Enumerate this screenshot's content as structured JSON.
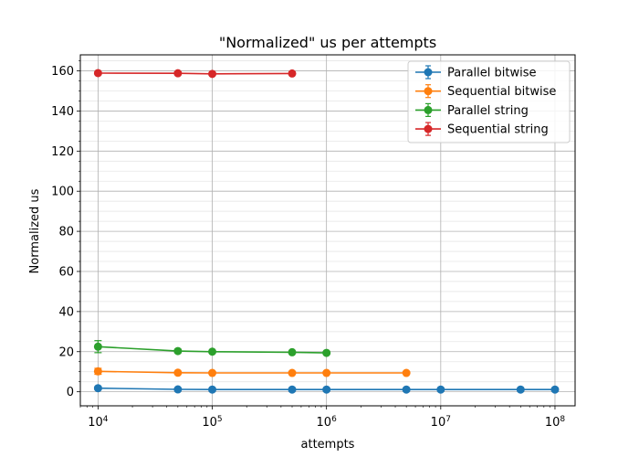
{
  "chart_data": {
    "type": "line",
    "title": "\"Normalized\" us per attempts",
    "xlabel": "attempts",
    "ylabel": "Normalized us",
    "xscale": "log",
    "xlim": [
      7000,
      150000000
    ],
    "ylim": [
      -7,
      168
    ],
    "yticks": [
      0,
      20,
      40,
      60,
      80,
      100,
      120,
      140,
      160
    ],
    "ytick_labels": [
      "0",
      "20",
      "40",
      "60",
      "80",
      "100",
      "120",
      "140",
      "160"
    ],
    "xticks": [
      10000,
      100000,
      1000000,
      10000000,
      100000000
    ],
    "xtick_labels": [
      {
        "base": "10",
        "exp": "4"
      },
      {
        "base": "10",
        "exp": "5"
      },
      {
        "base": "10",
        "exp": "6"
      },
      {
        "base": "10",
        "exp": "7"
      },
      {
        "base": "10",
        "exp": "8"
      }
    ],
    "grid": true,
    "legend_position": "top-right",
    "series": [
      {
        "name": "Parallel bitwise",
        "color": "#1f77b4",
        "x": [
          10000,
          50000,
          100000,
          500000,
          1000000,
          5000000,
          10000000,
          50000000,
          100000000
        ],
        "y": [
          1.8,
          1.2,
          1.1,
          1.1,
          1.1,
          1.1,
          1.1,
          1.1,
          1.1
        ],
        "err": [
          0.8,
          0.3,
          0.2,
          0.2,
          0.2,
          0.2,
          0.2,
          0.2,
          0.2
        ]
      },
      {
        "name": "Sequential bitwise",
        "color": "#ff7f0e",
        "x": [
          10000,
          50000,
          100000,
          500000,
          1000000,
          5000000
        ],
        "y": [
          10.2,
          9.5,
          9.4,
          9.4,
          9.4,
          9.4
        ],
        "err": [
          1.5,
          0.5,
          0.4,
          0.3,
          0.3,
          0.3
        ]
      },
      {
        "name": "Parallel string",
        "color": "#2ca02c",
        "x": [
          10000,
          50000,
          100000,
          500000,
          1000000
        ],
        "y": [
          22.5,
          20.3,
          20.0,
          19.7,
          19.4
        ],
        "err": [
          3.0,
          0.8,
          0.5,
          0.4,
          0.4
        ]
      },
      {
        "name": "Sequential string",
        "color": "#d62728",
        "x": [
          10000,
          50000,
          100000,
          500000
        ],
        "y": [
          158.9,
          158.8,
          158.5,
          158.7
        ],
        "err": [
          0.8,
          0.6,
          0.6,
          0.6
        ]
      }
    ]
  }
}
